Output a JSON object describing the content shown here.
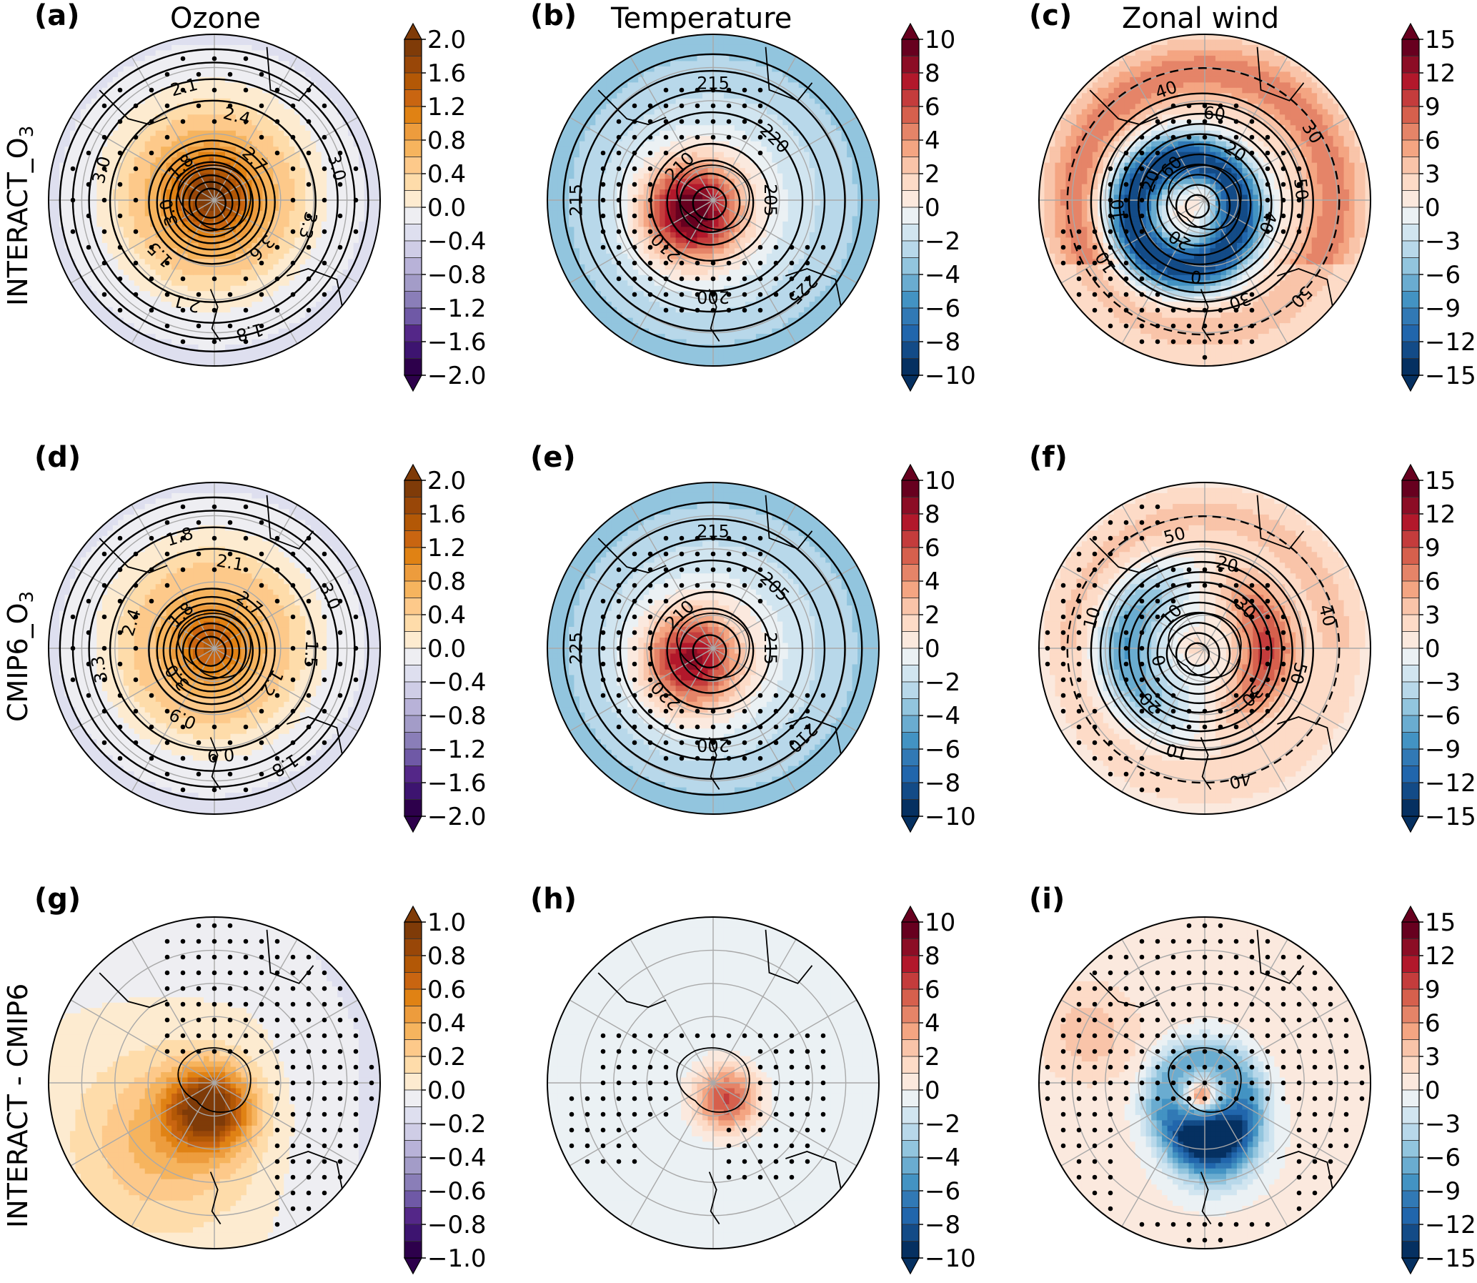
{
  "figure": {
    "columns": [
      {
        "label": "(a)",
        "title": "Ozone"
      },
      {
        "label": "(b)",
        "title": "Temperature"
      },
      {
        "label": "(c)",
        "title": "Zonal wind"
      }
    ],
    "rows": [
      {
        "label": "INTERACT_O",
        "sub": "3"
      },
      {
        "label": "CMIP6_O",
        "sub": "3"
      },
      {
        "label": "INTERACT - CMIP6",
        "sub": ""
      }
    ],
    "panel_labels": [
      "(a)",
      "(b)",
      "(c)",
      "(d)",
      "(e)",
      "(f)",
      "(g)",
      "(h)",
      "(i)"
    ]
  },
  "chart_data": [
    {
      "panel": "a",
      "type": "heatmap",
      "projection": "south-polar-stereographic",
      "title": "Ozone",
      "row": "INTERACT_O3",
      "colormap": "PuOr_r",
      "colorbar_ticks": [
        "2.0",
        "1.6",
        "1.2",
        "0.8",
        "0.4",
        "0.0",
        "−0.4",
        "−0.8",
        "−1.2",
        "−1.6",
        "−2.0"
      ],
      "colorbar_range": [
        -2.0,
        2.0
      ],
      "extend": "both",
      "anomaly_center_value": 2.0,
      "anomaly_center_offset": [
        -0.05,
        0.05
      ],
      "contour_labels": [
        "1.8",
        "2.1",
        "2.4",
        "2.7",
        "3.0",
        "3.3",
        "3.6",
        "1.8",
        "2.1",
        "1.5",
        "3.0",
        "3.0"
      ],
      "stippling": true
    },
    {
      "panel": "b",
      "type": "heatmap",
      "projection": "south-polar-stereographic",
      "title": "Temperature",
      "row": "INTERACT_O3",
      "colormap": "RdBu_r",
      "colorbar_ticks": [
        "10",
        "8",
        "6",
        "4",
        "2",
        "0",
        "−2",
        "−4",
        "−6",
        "−8",
        "−10"
      ],
      "colorbar_range": [
        -10,
        10
      ],
      "extend": "both",
      "anomaly_center_value": 10,
      "background_value": -3,
      "contour_labels": [
        "210",
        "215",
        "220",
        "205",
        "225",
        "200",
        "210",
        "215"
      ],
      "stippling": true
    },
    {
      "panel": "c",
      "type": "heatmap",
      "projection": "south-polar-stereographic",
      "title": "Zonal wind",
      "row": "INTERACT_O3",
      "colormap": "RdBu_r",
      "colorbar_ticks": [
        "15",
        "12",
        "9",
        "6",
        "3",
        "0",
        "−3",
        "−6",
        "−9",
        "−12",
        "−15"
      ],
      "colorbar_range": [
        -15,
        15
      ],
      "extend": "both",
      "ring_value": -15,
      "outer_value": 6,
      "center_value": 6,
      "contour_labels": [
        "60",
        "40",
        "60",
        "20",
        "30",
        "50",
        "40",
        "50",
        "30",
        "0",
        "20",
        "10",
        "10",
        "20"
      ],
      "stippling": true
    },
    {
      "panel": "d",
      "type": "heatmap",
      "projection": "south-polar-stereographic",
      "title": "",
      "row": "CMIP6_O3",
      "colormap": "PuOr_r",
      "colorbar_ticks": [
        "2.0",
        "1.6",
        "1.2",
        "0.8",
        "0.4",
        "0.0",
        "−0.4",
        "−0.8",
        "−1.2",
        "−1.6",
        "−2.0"
      ],
      "colorbar_range": [
        -2.0,
        2.0
      ],
      "extend": "both",
      "anomaly_center_value": 1.5,
      "contour_labels": [
        "1.8",
        "1.8",
        "2.1",
        "2.7",
        "3.0",
        "1.5",
        "1.2",
        "1.8",
        "0.9",
        "0.9",
        "3.0",
        "3.3",
        "2.4"
      ],
      "stippling": true
    },
    {
      "panel": "e",
      "type": "heatmap",
      "projection": "south-polar-stereographic",
      "title": "",
      "row": "CMIP6_O3",
      "colormap": "RdBu_r",
      "colorbar_ticks": [
        "10",
        "8",
        "6",
        "4",
        "2",
        "0",
        "−2",
        "−4",
        "−6",
        "−8",
        "−10"
      ],
      "colorbar_range": [
        -10,
        10
      ],
      "extend": "both",
      "anomaly_center_value": 8,
      "background_value": -3,
      "contour_labels": [
        "210",
        "215",
        "205",
        "215",
        "210",
        "200",
        "220",
        "225"
      ],
      "stippling": true
    },
    {
      "panel": "f",
      "type": "heatmap",
      "projection": "south-polar-stereographic",
      "title": "",
      "row": "CMIP6_O3",
      "colormap": "RdBu_r",
      "colorbar_ticks": [
        "15",
        "12",
        "9",
        "6",
        "3",
        "0",
        "−3",
        "−6",
        "−9",
        "−12",
        "−15"
      ],
      "colorbar_range": [
        -15,
        15
      ],
      "extend": "both",
      "ring_value": -9,
      "east_value": 9,
      "contour_labels": [
        "10",
        "50",
        "20",
        "30",
        "40",
        "50",
        "30",
        "40",
        "10",
        "20",
        "0",
        "10"
      ],
      "stippling": true
    },
    {
      "panel": "g",
      "type": "heatmap",
      "projection": "south-polar-stereographic",
      "title": "",
      "row": "INTERACT - CMIP6",
      "colormap": "PuOr_r",
      "colorbar_ticks": [
        "1.0",
        "0.8",
        "0.6",
        "0.4",
        "0.2",
        "0.0",
        "−0.2",
        "−0.4",
        "−0.6",
        "−0.8",
        "−1.0"
      ],
      "colorbar_range": [
        -1.0,
        1.0
      ],
      "extend": "both",
      "anomaly_center_value": 0.9,
      "contour_labels": [],
      "stippling": true
    },
    {
      "panel": "h",
      "type": "heatmap",
      "projection": "south-polar-stereographic",
      "title": "",
      "row": "INTERACT - CMIP6",
      "colormap": "RdBu_r",
      "colorbar_ticks": [
        "10",
        "8",
        "6",
        "4",
        "2",
        "0",
        "−2",
        "−4",
        "−6",
        "−8",
        "−10"
      ],
      "colorbar_range": [
        -10,
        10
      ],
      "extend": "both",
      "anomaly_center_value": 7,
      "background_value": -1,
      "contour_labels": [],
      "stippling": true
    },
    {
      "panel": "i",
      "type": "heatmap",
      "projection": "south-polar-stereographic",
      "title": "",
      "row": "INTERACT - CMIP6",
      "colormap": "RdBu_r",
      "colorbar_ticks": [
        "15",
        "12",
        "9",
        "6",
        "3",
        "0",
        "−3",
        "−6",
        "−9",
        "−12",
        "−15"
      ],
      "colorbar_range": [
        -15,
        15
      ],
      "extend": "both",
      "ring_value": -13,
      "center_value": 9,
      "outer_value": 2,
      "contour_labels": [],
      "stippling": true
    }
  ]
}
